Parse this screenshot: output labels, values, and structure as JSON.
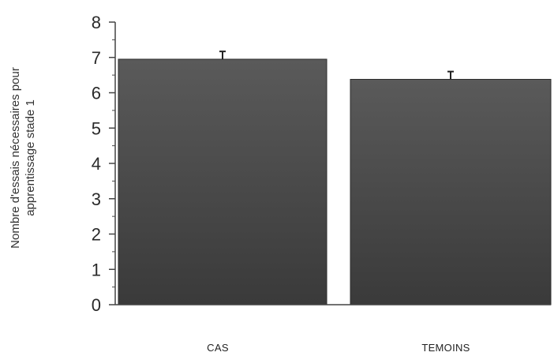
{
  "chart_data": {
    "type": "bar",
    "categories": [
      "CAS",
      "TEMOINS"
    ],
    "values": [
      6.95,
      6.38
    ],
    "error": [
      0.22,
      0.22
    ],
    "ylim": [
      0,
      8
    ],
    "yticks": [
      0,
      1,
      2,
      3,
      4,
      5,
      6,
      7,
      8
    ],
    "ylabel_lines": [
      "Nombre d'essais  nécessaires pour",
      "apprentissage stade 1"
    ],
    "xlabel": "",
    "title": "",
    "grid": false,
    "legend": "none",
    "colors": {
      "bar_top": "#5a5a5a",
      "bar_bottom": "#3a3a3a",
      "bar_edge": "#2e2e2e",
      "axis": "#444444",
      "error_bar": "#222222"
    }
  }
}
